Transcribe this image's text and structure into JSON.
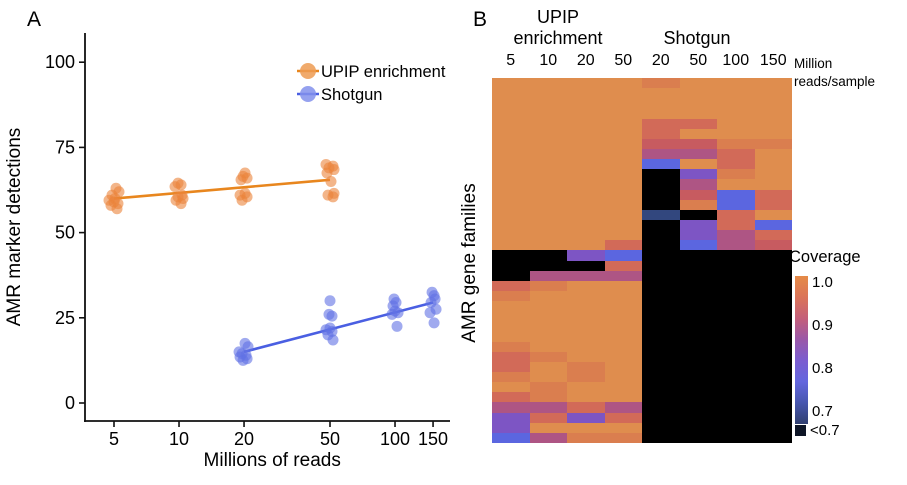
{
  "panelA": {
    "label": "A",
    "y_axis_title": "AMR marker detections",
    "x_axis_title": "Millions of reads",
    "legend": [
      {
        "label": "UPIP enrichment",
        "color": "#ED9B52",
        "line_color": "#E8861E"
      },
      {
        "label": "Shotgun",
        "color": "#8290EC",
        "line_color": "#4A5FE2"
      }
    ]
  },
  "panelB": {
    "label": "B",
    "upip_header_line1": "UPIP",
    "upip_header_line2": "enrichment",
    "shotgun_header": "Shotgun",
    "units_line1": "Million",
    "units_line2": "reads/sample",
    "y_axis_title": "AMR gene families",
    "col_labels": [
      "5",
      "10",
      "20",
      "50",
      "20",
      "50",
      "100",
      "150"
    ],
    "palette": {
      "o": "#DF8D4E",
      "O": "#DA7E4F",
      "s": "#D26A58",
      "r": "#C75B60",
      "m": "#AE5584",
      "p": "#7D55C4",
      "b": "#5B66E0",
      "d": "#32477E",
      "k": "#000000"
    },
    "colorbar": {
      "title": "Coverage",
      "tick_labels": [
        "1.0",
        "0.9",
        "0.8",
        "0.7"
      ],
      "below_label": "<0.7",
      "gradient": [
        "#E58B47",
        "#DB7458",
        "#C45F7A",
        "#9A58A8",
        "#7B5DD0",
        "#6366DE",
        "#4756AE",
        "#303F70"
      ]
    }
  },
  "chart_data": [
    {
      "type": "scatter",
      "panel": "A",
      "title": "",
      "xlabel": "Millions of reads",
      "ylabel": "AMR marker detections",
      "x_scale": "log10",
      "x_ticks": [
        5,
        10,
        20,
        50,
        100,
        150
      ],
      "y_ticks": [
        0,
        25,
        50,
        75,
        100
      ],
      "ylim": [
        -5,
        107
      ],
      "legend_position": "top-right-inside",
      "series": [
        {
          "name": "UPIP enrichment",
          "point_color": "#EB843A",
          "line_color": "#E8861E",
          "trend": {
            "x": [
              5,
              50
            ],
            "y": [
              60,
              65.5
            ]
          },
          "points": [
            [
              5,
              57,
              3
            ],
            [
              5,
              58,
              -3
            ],
            [
              5,
              58.5,
              4
            ],
            [
              5,
              59,
              0
            ],
            [
              5,
              59.5,
              -5
            ],
            [
              5,
              60,
              1
            ],
            [
              5,
              61,
              -2
            ],
            [
              5,
              62,
              5
            ],
            [
              5,
              63,
              2
            ],
            [
              10,
              58.5,
              2
            ],
            [
              10,
              59.5,
              -3
            ],
            [
              10,
              60,
              4
            ],
            [
              10,
              60.5,
              -1
            ],
            [
              10,
              61,
              3
            ],
            [
              10,
              63.5,
              -4
            ],
            [
              10,
              64,
              2
            ],
            [
              10,
              64.5,
              -1
            ],
            [
              20,
              59.5,
              -2
            ],
            [
              20,
              60.5,
              3
            ],
            [
              20,
              61,
              -4
            ],
            [
              20,
              61.5,
              1
            ],
            [
              20,
              65.5,
              -3
            ],
            [
              20,
              66,
              3
            ],
            [
              20,
              66.5,
              -1
            ],
            [
              20,
              67.5,
              1
            ],
            [
              50,
              60.5,
              3
            ],
            [
              50,
              61,
              -2
            ],
            [
              50,
              61.5,
              4
            ],
            [
              50,
              65,
              1
            ],
            [
              50,
              67.5,
              -3
            ],
            [
              50,
              68.5,
              4
            ],
            [
              50,
              69,
              -1
            ],
            [
              50,
              69.5,
              3
            ],
            [
              50,
              70,
              -4
            ]
          ]
        },
        {
          "name": "Shotgun",
          "point_color": "#6172E5",
          "line_color": "#4A5FE2",
          "trend": {
            "x": [
              20,
              150
            ],
            "y": [
              15,
              29.5
            ]
          },
          "points": [
            [
              20,
              12.5,
              -1
            ],
            [
              20,
              13,
              3
            ],
            [
              20,
              13.5,
              -4
            ],
            [
              20,
              14,
              2
            ],
            [
              20,
              14.5,
              -2
            ],
            [
              20,
              15,
              -5
            ],
            [
              20,
              16.5,
              4
            ],
            [
              20,
              17.5,
              1
            ],
            [
              50,
              18.5,
              3
            ],
            [
              50,
              20,
              -2
            ],
            [
              50,
              21,
              2
            ],
            [
              50,
              21.5,
              -4
            ],
            [
              50,
              22,
              0
            ],
            [
              50,
              25.5,
              2
            ],
            [
              50,
              26,
              -1
            ],
            [
              50,
              30,
              0
            ],
            [
              100,
              22.5,
              2
            ],
            [
              100,
              26,
              -3
            ],
            [
              100,
              26.5,
              3
            ],
            [
              100,
              27,
              0
            ],
            [
              100,
              28.5,
              -2
            ],
            [
              100,
              29.5,
              1
            ],
            [
              100,
              30.5,
              -1
            ],
            [
              150,
              23.5,
              1
            ],
            [
              150,
              26.5,
              -3
            ],
            [
              150,
              27.5,
              3
            ],
            [
              150,
              29.5,
              -2
            ],
            [
              150,
              30.5,
              2
            ],
            [
              150,
              31.5,
              1
            ],
            [
              150,
              32.5,
              -1
            ]
          ]
        }
      ]
    },
    {
      "type": "heatmap",
      "panel": "B",
      "col_groups": [
        {
          "name": "UPIP enrichment",
          "cols": [
            5,
            10,
            20,
            50
          ]
        },
        {
          "name": "Shotgun",
          "cols": [
            20,
            50,
            100,
            150
          ]
        }
      ],
      "col_unit": "Million reads/sample",
      "row_axis": "AMR gene families",
      "legend": {
        "title": "Coverage",
        "ticks": [
          1.0,
          0.9,
          0.8,
          0.7
        ],
        "below": "<0.7"
      },
      "value_codes": {
        "o": 1.0,
        "O": 0.97,
        "s": 0.93,
        "r": 0.9,
        "m": 0.85,
        "p": 0.8,
        "b": 0.74,
        "d": 0.7,
        "k": "<0.7"
      },
      "grid": [
        "ooooOooo",
        "oooooooo",
        "oooooooo",
        "oooooooo",
        "oooossoo",
        "oooosooo",
        "oooorrOO",
        "oooommso",
        "ooooboso",
        "ooookpOo",
        "ooookmoo",
        "ooookrbs",
        "ooookObs",
        "oooodkso",
        "ooookpsb",
        "ooookpms",
        "oooskbmr",
        "kkpbkkkk",
        "kkkskkkk",
        "kmmmkkkk",
        "sOookkkk",
        "Ooookkkk",
        "ooookkkk",
        "ooookkkk",
        "ooookkkk",
        "ooookkkk",
        "Ooookkkk",
        "sOookkkk",
        "soOokkkk",
        "OoOokkkk",
        "oOookkkk",
        "sOookkkk",
        "mmsmkkkk",
        "pspskkkk",
        "poookkkk",
        "bmOOkkkk"
      ]
    }
  ]
}
